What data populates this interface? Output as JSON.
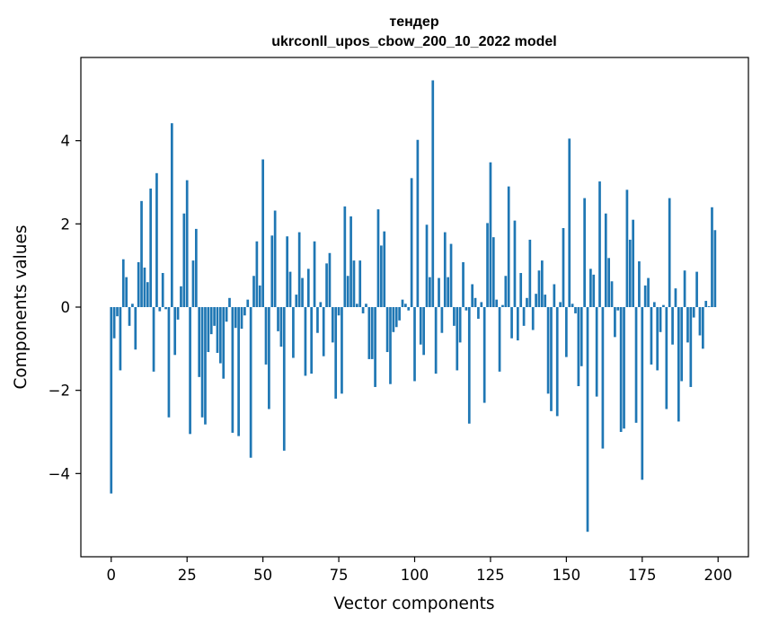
{
  "chart_data": {
    "type": "bar",
    "title": "тендер",
    "subtitle": "ukrconll_upos_cbow_200_10_2022 model",
    "xlabel": "Vector components",
    "ylabel": "Components values",
    "xlim": [
      -10,
      210
    ],
    "ylim": [
      -6.0,
      6.0
    ],
    "xticks": [
      0,
      25,
      50,
      75,
      100,
      125,
      150,
      175,
      200
    ],
    "yticks": [
      -4,
      -2,
      0,
      2,
      4
    ],
    "ytick_labels": [
      "−4",
      "−2",
      "0",
      "2",
      "4"
    ],
    "grid": false,
    "bar_color": "#1f77b4",
    "values": [
      -4.48,
      -0.75,
      -0.22,
      -1.52,
      1.15,
      0.72,
      -0.45,
      0.08,
      -1.02,
      1.08,
      2.55,
      0.95,
      0.6,
      2.85,
      -1.55,
      3.22,
      -0.1,
      0.82,
      -0.05,
      -2.65,
      4.42,
      -1.15,
      -0.3,
      0.5,
      2.25,
      3.05,
      -3.05,
      1.12,
      1.88,
      -1.68,
      -2.65,
      -2.82,
      -1.08,
      -0.65,
      -0.45,
      -1.1,
      -1.35,
      -1.72,
      -0.35,
      0.22,
      -3.02,
      -0.5,
      -3.1,
      -0.52,
      -0.2,
      0.18,
      -3.62,
      0.75,
      1.58,
      0.52,
      3.55,
      -1.38,
      -2.45,
      1.72,
      2.32,
      -0.58,
      -0.95,
      -3.45,
      1.7,
      0.85,
      -1.22,
      0.3,
      1.8,
      0.7,
      -1.65,
      0.92,
      -1.6,
      1.58,
      -0.62,
      0.12,
      -1.18,
      1.05,
      1.3,
      -0.85,
      -2.2,
      -0.2,
      -2.08,
      2.42,
      0.75,
      2.18,
      1.12,
      0.08,
      1.12,
      -0.15,
      0.08,
      -1.25,
      -1.25,
      -1.92,
      2.35,
      1.48,
      1.82,
      -1.08,
      -1.85,
      -0.6,
      -0.48,
      -0.32,
      0.18,
      0.08,
      -0.08,
      3.1,
      -1.78,
      4.02,
      -0.9,
      -1.15,
      1.98,
      0.72,
      5.45,
      -1.6,
      0.7,
      -0.62,
      1.8,
      0.72,
      1.52,
      -0.45,
      -1.52,
      -0.85,
      1.08,
      -0.08,
      -2.8,
      0.55,
      0.22,
      -0.28,
      0.12,
      -2.3,
      2.02,
      3.48,
      1.68,
      0.18,
      -1.55,
      0.05,
      0.75,
      2.9,
      -0.75,
      2.08,
      -0.8,
      0.82,
      -0.45,
      0.22,
      1.62,
      -0.55,
      0.32,
      0.88,
      1.12,
      0.3,
      -2.08,
      -2.5,
      0.55,
      -2.62,
      0.12,
      1.9,
      -1.2,
      4.05,
      0.08,
      -0.15,
      -1.9,
      -1.42,
      2.62,
      -5.4,
      0.92,
      0.78,
      -2.15,
      3.02,
      -3.4,
      2.25,
      1.18,
      0.62,
      -0.72,
      -0.08,
      -3.0,
      -2.92,
      2.82,
      1.62,
      2.1,
      -2.78,
      1.1,
      -4.15,
      0.52,
      0.7,
      -1.38,
      0.12,
      -1.52,
      -0.6,
      0.05,
      -2.45,
      2.62,
      -0.9,
      0.45,
      -2.75,
      -1.78,
      0.88,
      -0.85,
      -1.92,
      -0.25,
      0.85,
      -0.68,
      -1.0,
      0.15,
      0.02,
      2.4,
      1.85
    ]
  }
}
